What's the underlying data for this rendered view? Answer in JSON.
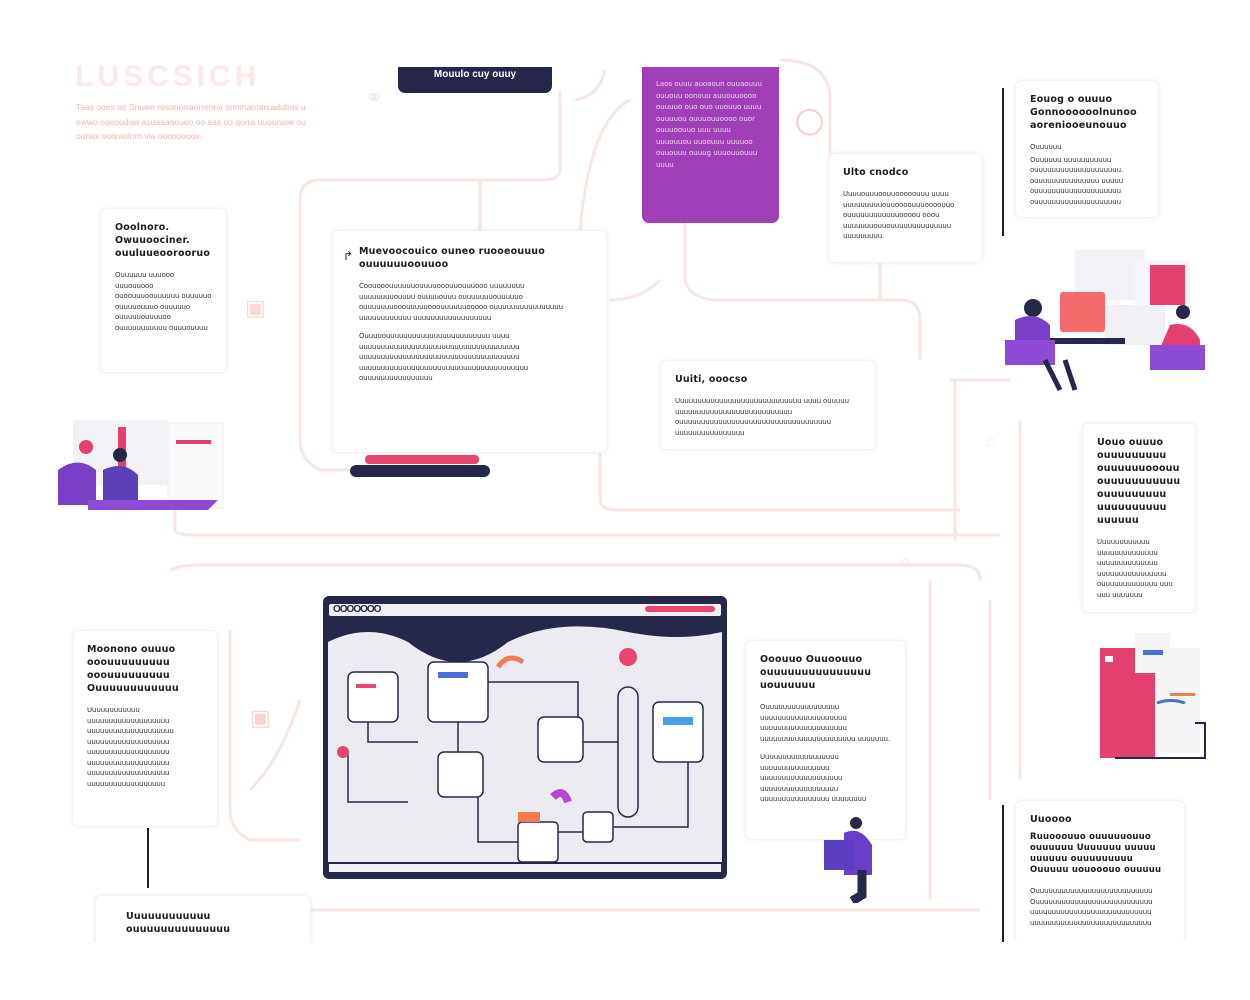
{
  "header": {
    "faded_title": "LUSCSICH",
    "faded_paragraph": "Taas ooes oo Snuwe rosonurraorrenna onmnaroarcadubas u ewwo ooooodow asuaaaaouoo oo aas oo qorra uuooniow ou oonax oonraoloro via oooooooov.",
    "navy_tab_label": "Mouulo cuy ouuy"
  },
  "purple_card": {
    "text": "Laos ouuu auoaoun ouuaouuu ouuouu oonouu auuouuoooo ouuuuo ouo ouo uuouuo uuuu ouuuuou ouuuouuoooo ouor ouuuoouuo uuu uuuu uuuouuou uuoouuu uuuuoo ouuouuu ouuug uuuouuouuu uuuu"
  },
  "cards": [
    {
      "id": "a",
      "title": "Ooolnoro. Owuuoociner. ouuluueoorooruo",
      "body": [
        "Ouuuuuu uuuooo uuuouuooo ouoouuuoouuuuuu ouuuuuo ouuuuouuuo ouuuuuo ouuuuuouuuuoo ouuuuuuuuuuu ouuuouuuu"
      ]
    },
    {
      "id": "b",
      "title": "Muevoocouico ouneo ruooeouuuo ouuuuuuoouuoo",
      "body": [
        "Coouooouuuuuuouuuuooouuouuuooo uuuuuuuu uuuuuuuuouuuu ouuuuouuu ouuuuuuuouuuuuo ouuuuuuuooouuuuuooouuuuuuooooo ouuuuuuuuuuuuuuuu uuuuuuuuuuuu uuuuuuuuuuuuuuuuuu",
        "Ouuuuouuuuuuuuuuuuuuuuuuuuuuuu uuuu uuuuuuuuuuuuuuuuuuuuuuuuuuuuuuuuuuuuu uuuuuuuuuuuuuuuuuuuuuuuuuuuuuuuuuuuuu uuuuuuuuuuuuuuuuuuuuuuuuuuuuuuuuuuuuuuu ouuuuuuuuuuuuuuuu"
      ]
    },
    {
      "id": "c",
      "title": "Ulto cnodco",
      "body": [
        "Uuuuouuuoouuooooouuu uuuu uuuuuuuuuouuoooouuuoooouuo ouuuuuuuuuuuuoooou ooou uuuuuuuouuouuuuuuuuuuuuuu uuuuuuuuu."
      ]
    },
    {
      "id": "d",
      "title": "Eouog o ouuuo Gonnoooooolnunoo aoreniooeunouuo",
      "body": [
        "Ouuuuuu",
        "Ouuuuuu uuuuuuuuuuu ouuuuuuuuuuuuuuuuuuuu. ouuuuuuuuuuuuuuu uuuuu ouuuuuuuuuuuuuuuuuuuu ouuuuuuuuuuuuuuuuuuuu"
      ]
    },
    {
      "id": "e",
      "title": "Uuiti, ooocso",
      "body": [
        "Uuuuuuuuuuuuuuuuuuuuuuuuuuuuu uuuu ouuuuu uuuuuuuuuuuuuuuuuuuuuuuuuuu ouuuuuuuuuuuuuuuuuuuuuuuuuuuuuuuuuuu uuuuuuuuuuuuuuuu"
      ]
    },
    {
      "id": "f",
      "title": "Uouo ouuuo ouuuuuuuuu ouuuuuuooouu ouuuuuuuuuuu ouuuuuuuuu uuuuuuuuuu uuuuuu",
      "body": [
        "Uuuuuuuuuuuu uuuuuuuuuuuuuu uuuuuuuuuuuuuu uuuuuuuuuuuuuuuu ouuuuuuuuuuuuu uuu uuu uuuuuuu"
      ]
    },
    {
      "id": "g",
      "title": "Moonono ouuuo ooouuuuuuuuu ooouuuuuuuuu Ouuuuuuuuuuuu",
      "body": [
        "Uuuuuuuuuuuu uuuuuuuuuuuuuuuuuuu uuuuuuuuuuuuuuuuuuuu uuuuuuuuuuuuuuuuuuu uuuuuuuuuuuuuuuuuuu uuuuuuuuuuuuuuuuuuu uuuuuuuuuuuuuuuuuuu uuuuuuuuuuuuuuuuuu"
      ]
    },
    {
      "id": "h",
      "title": "Ooouuo Ouuoouuo ouuuuuuuuuuuuuuu uouuuuuu",
      "body": [
        "Ouuuuuuuuuuuuuuuuu uuuuuuuuuuuuuuuuuuuu uuuuuuuuuuuuuuuuuuuu uuuuuuuuuuuuuuuuuuuuuu uuuuuuu.",
        "Uuuuuuuuuuuuuuuuuu uuuuuuuuuuuuuuuu uuuuuuuuuuuuuuuuuuu uuuuuuuuuuuuuuuuuu uuuuuuuuuuuuuuuu uuuuuuuu"
      ]
    },
    {
      "id": "i",
      "title": "Uuoooo",
      "body": [
        "Ouuuuuuuuuuuuuuuuuuuuuuuuuuu Ouuuuuuuuuuuuuuuuuuuuuuuuuuu uuuuuuuuuuuuuuuuuuuuuuuuuuuu uuuuuuuuuuuuuuuuuuuuuuuuuuuu"
      ],
      "subtitle": "Ruuooouuo ouuuuuouuo ouuuuuu Uuuuuuu uuuuu uuuuuu ouuuuuuuuu Ouuuuu uouooouo ouuuuu"
    },
    {
      "id": "j",
      "title": "Uuuuuuuuuuuu ouuuuuuuuuuuuuu",
      "body": []
    }
  ],
  "screenshot": {
    "toolbar_label": "OOOOOOO"
  },
  "colors": {
    "navy": "#26284a",
    "purple": "#a13fb8",
    "accent_pink": "#e8466e",
    "wire": "#f6e4e0"
  }
}
